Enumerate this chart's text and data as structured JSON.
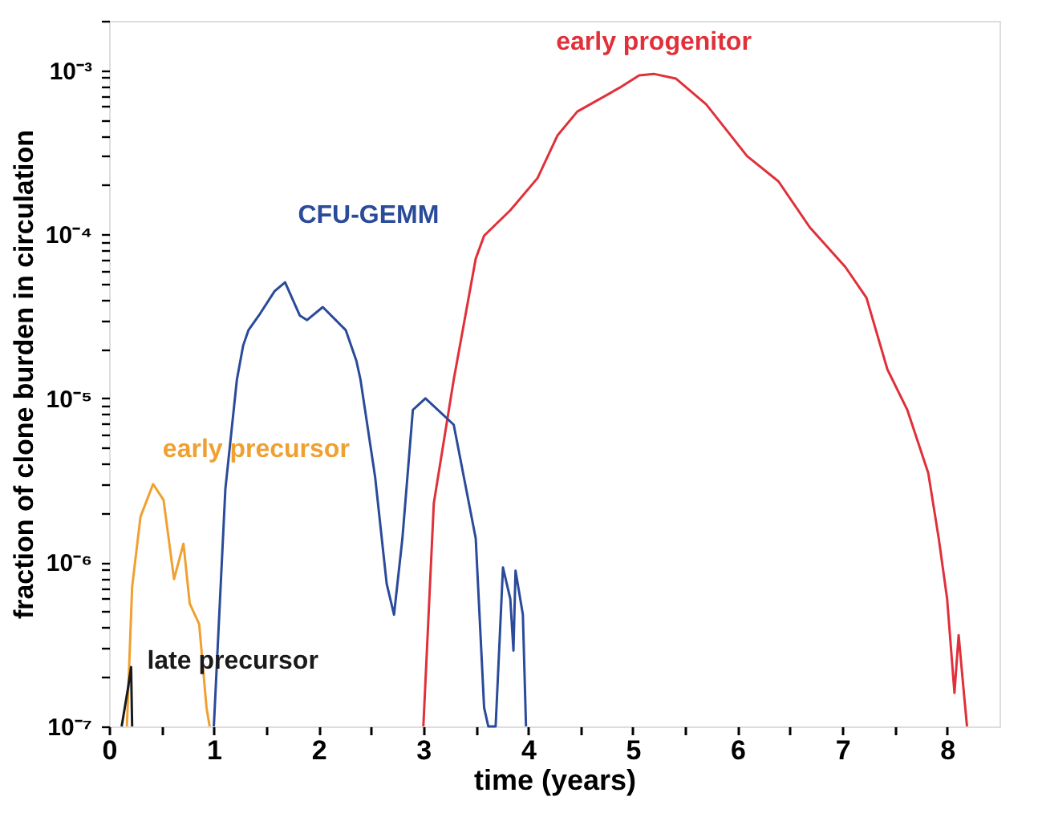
{
  "chart_data": {
    "type": "line",
    "xlabel": "time (years)",
    "ylabel": "fraction of clone burden in circulation",
    "log": "y",
    "grid": false,
    "xlim": [
      0,
      8.5
    ],
    "ylim": [
      1e-07,
      0.002
    ],
    "xticks": [
      0,
      {
        "value": 0.5,
        "label": null
      },
      1,
      {
        "value": 1.5,
        "label": null
      },
      2,
      {
        "value": 2.5,
        "label": null
      },
      3,
      {
        "value": 3.5,
        "label": null
      },
      4,
      {
        "value": 4.5,
        "label": null
      },
      5,
      {
        "value": 5.5,
        "label": null
      },
      6,
      {
        "value": 6.5,
        "label": null
      },
      7,
      {
        "value": 7.5,
        "label": null
      },
      8
    ],
    "yticks": [
      {
        "value": 1e-07,
        "label": "10⁻⁷"
      },
      {
        "value": 2e-07,
        "label": null
      },
      {
        "value": 3e-07,
        "label": null
      },
      {
        "value": 4e-07,
        "label": null
      },
      {
        "value": 5e-07,
        "label": null
      },
      {
        "value": 6e-07,
        "label": null
      },
      {
        "value": 7e-07,
        "label": null
      },
      {
        "value": 8e-07,
        "label": null
      },
      {
        "value": 9e-07,
        "label": null
      },
      {
        "value": 1e-06,
        "label": "10⁻⁶"
      },
      {
        "value": 2e-06,
        "label": null
      },
      {
        "value": 3e-06,
        "label": null
      },
      {
        "value": 4e-06,
        "label": null
      },
      {
        "value": 5e-06,
        "label": null
      },
      {
        "value": 6e-06,
        "label": null
      },
      {
        "value": 7e-06,
        "label": null
      },
      {
        "value": 8e-06,
        "label": null
      },
      {
        "value": 9e-06,
        "label": null
      },
      {
        "value": 1e-05,
        "label": "10⁻⁵"
      },
      {
        "value": 2e-05,
        "label": null
      },
      {
        "value": 3e-05,
        "label": null
      },
      {
        "value": 4e-05,
        "label": null
      },
      {
        "value": 5e-05,
        "label": null
      },
      {
        "value": 6e-05,
        "label": null
      },
      {
        "value": 7e-05,
        "label": null
      },
      {
        "value": 8e-05,
        "label": null
      },
      {
        "value": 9e-05,
        "label": null
      },
      {
        "value": 0.0001,
        "label": "10⁻⁴"
      },
      {
        "value": 0.0002,
        "label": null
      },
      {
        "value": 0.0003,
        "label": null
      },
      {
        "value": 0.0004,
        "label": null
      },
      {
        "value": 0.0005,
        "label": null
      },
      {
        "value": 0.0006,
        "label": null
      },
      {
        "value": 0.0007,
        "label": null
      },
      {
        "value": 0.0008,
        "label": null
      },
      {
        "value": 0.0009,
        "label": null
      },
      {
        "value": 0.001,
        "label": "10⁻³"
      },
      {
        "value": 0.002,
        "label": null
      }
    ],
    "series": [
      {
        "name": "early progenitor",
        "color": "#e0303a",
        "x": [
          3.0,
          3.1,
          3.29,
          3.5,
          3.58,
          3.83,
          4.09,
          4.28,
          4.47,
          4.87,
          5.06,
          5.2,
          5.41,
          5.7,
          6.09,
          6.39,
          6.69,
          7.03,
          7.23,
          7.43,
          7.62,
          7.82,
          7.92,
          8.0,
          8.07,
          8.11,
          8.16,
          8.19
        ],
        "values": [
          1e-07,
          2.3e-06,
          1.3e-05,
          7.1e-05,
          9.8e-05,
          0.00014,
          0.00022,
          0.0004,
          0.00056,
          0.00078,
          0.00093,
          0.00095,
          0.00089,
          0.00062,
          0.0003,
          0.00021,
          0.00011,
          6.3e-05,
          4.1e-05,
          1.5e-05,
          8.5e-06,
          3.5e-06,
          1.4e-06,
          6e-07,
          1.6e-07,
          3.6e-07,
          1.6e-07,
          1e-07
        ]
      },
      {
        "name": "CFU-GEMM",
        "color": "#2a4a9a",
        "x": [
          1.0,
          1.11,
          1.22,
          1.28,
          1.33,
          1.43,
          1.58,
          1.68,
          1.82,
          1.89,
          2.04,
          2.26,
          2.36,
          2.4,
          2.54,
          2.65,
          2.72,
          2.8,
          2.9,
          3.02,
          3.29,
          3.5,
          3.58,
          3.62,
          3.69,
          3.76,
          3.83,
          3.86,
          3.88,
          3.95,
          3.98
        ],
        "values": [
          1e-07,
          2.8e-06,
          1.3e-05,
          2.1e-05,
          2.6e-05,
          3.2e-05,
          4.5e-05,
          5.1e-05,
          3.2e-05,
          3e-05,
          3.6e-05,
          2.6e-05,
          1.7e-05,
          1.3e-05,
          3.3e-06,
          7.4e-07,
          4.8e-07,
          1.4e-06,
          8.5e-06,
          1e-05,
          6.9e-06,
          1.4e-06,
          1.3e-07,
          1e-07,
          1e-07,
          9.3e-07,
          6e-07,
          2.9e-07,
          8.9e-07,
          4.8e-07,
          1e-07
        ]
      },
      {
        "name": "early precursor",
        "color": "#f0a030",
        "x": [
          0.17,
          0.22,
          0.3,
          0.42,
          0.52,
          0.62,
          0.71,
          0.77,
          0.86,
          0.93,
          0.96
        ],
        "values": [
          1e-07,
          7.1e-07,
          1.9e-06,
          3e-06,
          2.4e-06,
          7.9e-07,
          1.3e-06,
          5.6e-07,
          4.2e-07,
          1.3e-07,
          1e-07
        ]
      },
      {
        "name": "late precursor",
        "color": "#1a1a1a",
        "x": [
          0.12,
          0.18,
          0.21,
          0.22
        ],
        "values": [
          1e-07,
          1.7e-07,
          2.3e-07,
          1e-07
        ]
      }
    ]
  }
}
